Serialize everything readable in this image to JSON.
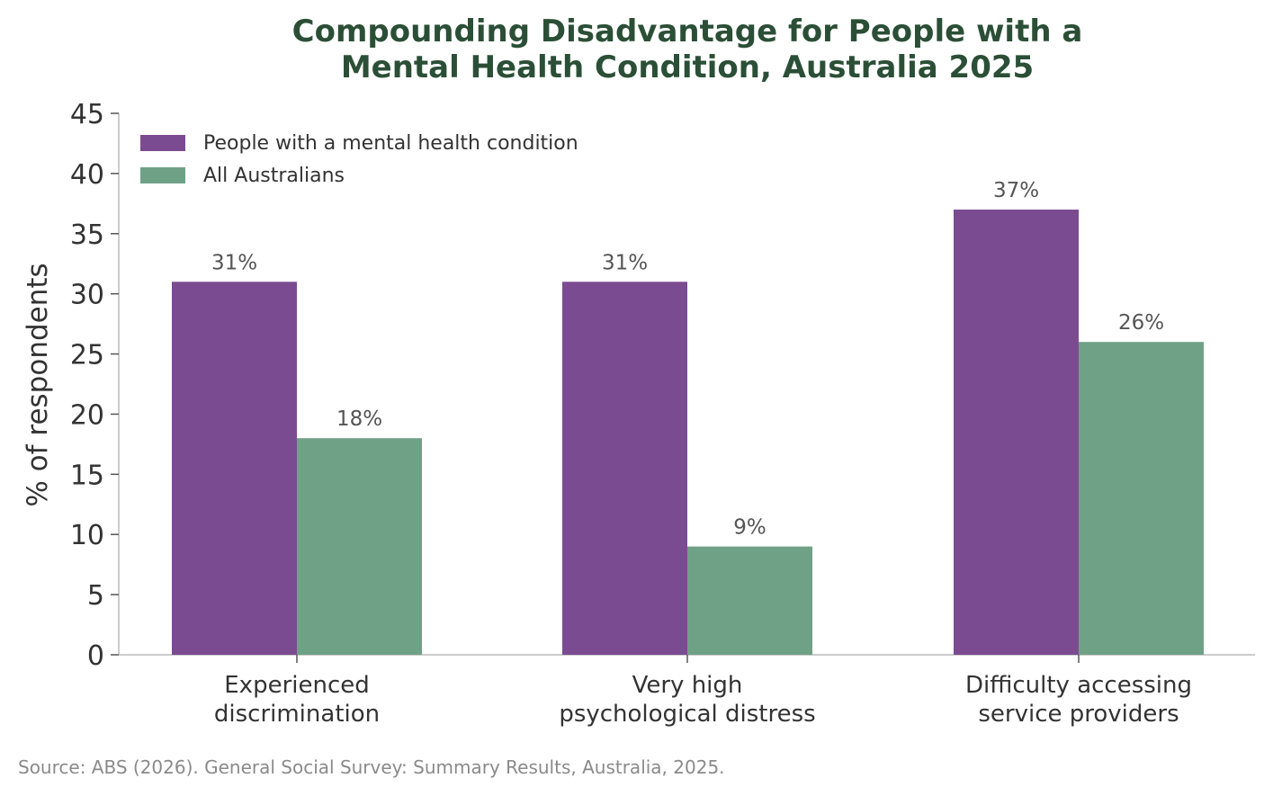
{
  "chart_data": {
    "type": "bar",
    "title": [
      "Compounding Disadvantage for People with a",
      "Mental Health Condition, Australia 2025"
    ],
    "ylabel": "% of respondents",
    "xlabel": "",
    "ylim": [
      0,
      45
    ],
    "yticks": [
      0,
      5,
      10,
      15,
      20,
      25,
      30,
      35,
      40,
      45
    ],
    "categories": [
      [
        "Experienced",
        "discrimination"
      ],
      [
        "Very high",
        "psychological distress"
      ],
      [
        "Difficulty accessing",
        "service providers"
      ]
    ],
    "series": [
      {
        "name": "People with a mental health condition",
        "values": [
          31,
          31,
          37
        ],
        "labels": [
          "31%",
          "31%",
          "37%"
        ],
        "color": "#7b4b91"
      },
      {
        "name": "All Australians",
        "values": [
          18,
          9,
          26
        ],
        "labels": [
          "18%",
          "9%",
          "26%"
        ],
        "color": "#6fa187"
      }
    ],
    "legend_position": "top-left",
    "grid": false,
    "source": "Source: ABS (2026). General Social Survey: Summary Results, Australia, 2025."
  },
  "colors": {
    "title": "#2b4f36",
    "axis": "#bbbbbb",
    "text": "#333333",
    "data_label": "#555555",
    "source": "#8a8a8a"
  }
}
